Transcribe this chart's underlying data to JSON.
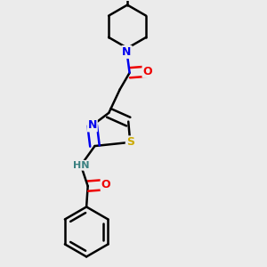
{
  "background_color": "#ebebeb",
  "atom_colors": {
    "C": "#000000",
    "N": "#0000ee",
    "O": "#ee0000",
    "S": "#ccaa00",
    "H": "#3a8080"
  },
  "bond_lw": 1.8,
  "figsize": [
    3.0,
    3.0
  ],
  "dpi": 100
}
